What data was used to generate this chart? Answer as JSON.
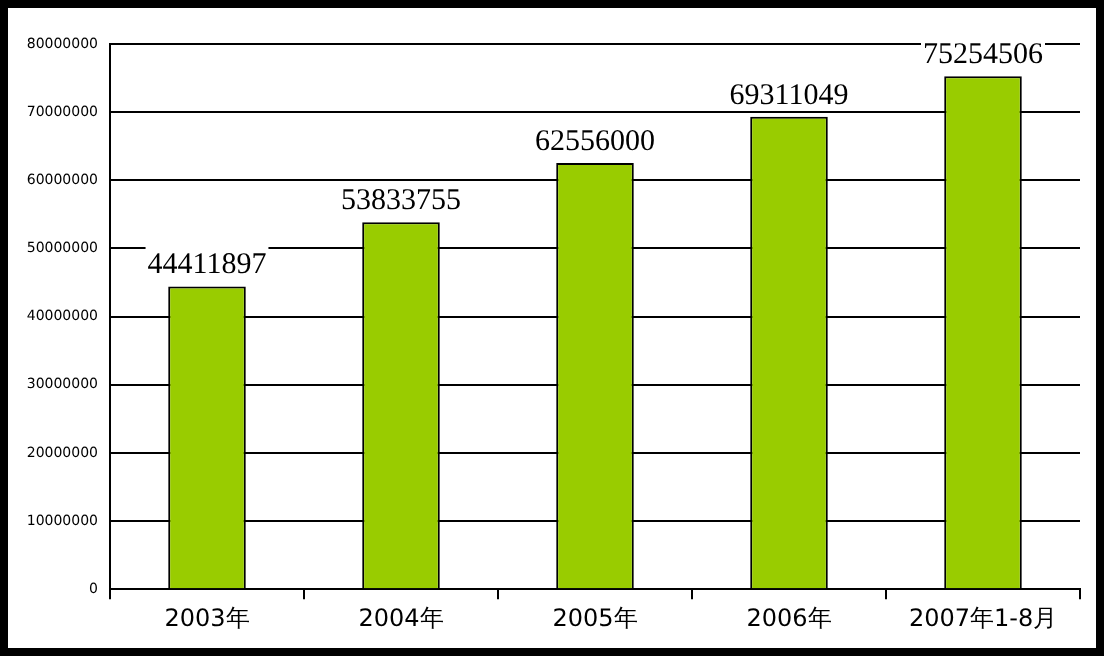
{
  "chart_data": {
    "type": "bar",
    "categories": [
      "2003年",
      "2004年",
      "2005年",
      "2006年",
      "2007年1-8月"
    ],
    "values": [
      44411897,
      53833755,
      62556000,
      69311049,
      75254506
    ],
    "color": "#99cc00",
    "ylim": [
      0,
      80000000
    ],
    "yticks": [
      0,
      10000000,
      20000000,
      30000000,
      40000000,
      50000000,
      60000000,
      70000000,
      80000000
    ],
    "grid": "y",
    "data_labels": true
  }
}
